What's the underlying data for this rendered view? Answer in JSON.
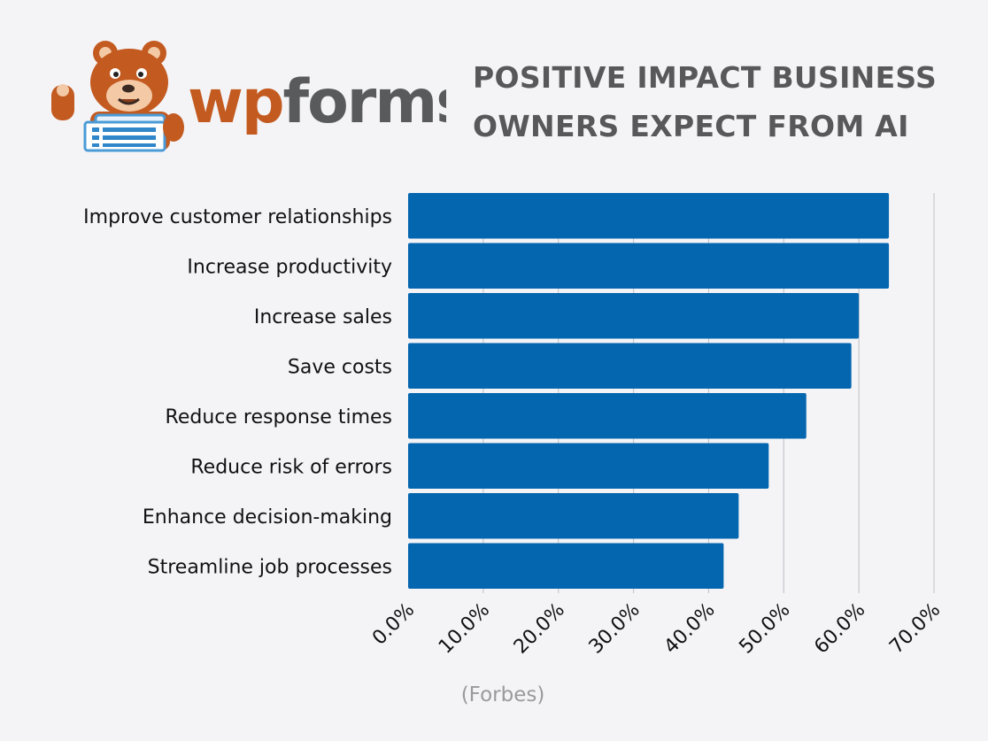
{
  "brand": {
    "name": "wpforms",
    "name_part1": "wp",
    "name_part2": "forms",
    "primary_color": "#c35a1f",
    "secondary_color": "#595a5c",
    "mascot_icon": "bear-mascot-icon"
  },
  "header": {
    "title_line1": "POSITIVE IMPACT BUSINESS",
    "title_line2": "OWNERS EXPECT FROM AI",
    "title_color": "#58585a"
  },
  "source_note": "(Forbes)",
  "chart_data": {
    "type": "bar",
    "orientation": "horizontal",
    "categories": [
      "Improve customer relationships",
      "Increase productivity",
      "Increase sales",
      "Save costs",
      "Reduce response times",
      "Reduce risk of errors",
      "Enhance decision-making",
      "Streamline job processes"
    ],
    "values": [
      64,
      64,
      60,
      59,
      53,
      48,
      44,
      42
    ],
    "value_unit": "%",
    "xlim": [
      0,
      70
    ],
    "xticks": [
      0,
      10,
      20,
      30,
      40,
      50,
      60,
      70
    ],
    "xtick_labels": [
      "0.0%",
      "10.0%",
      "20.0%",
      "30.0%",
      "40.0%",
      "50.0%",
      "60.0%",
      "70.0%"
    ],
    "grid": "vertical",
    "bar_color": "#0566b0",
    "grid_color": "#c8c8cc",
    "legend": "none"
  }
}
